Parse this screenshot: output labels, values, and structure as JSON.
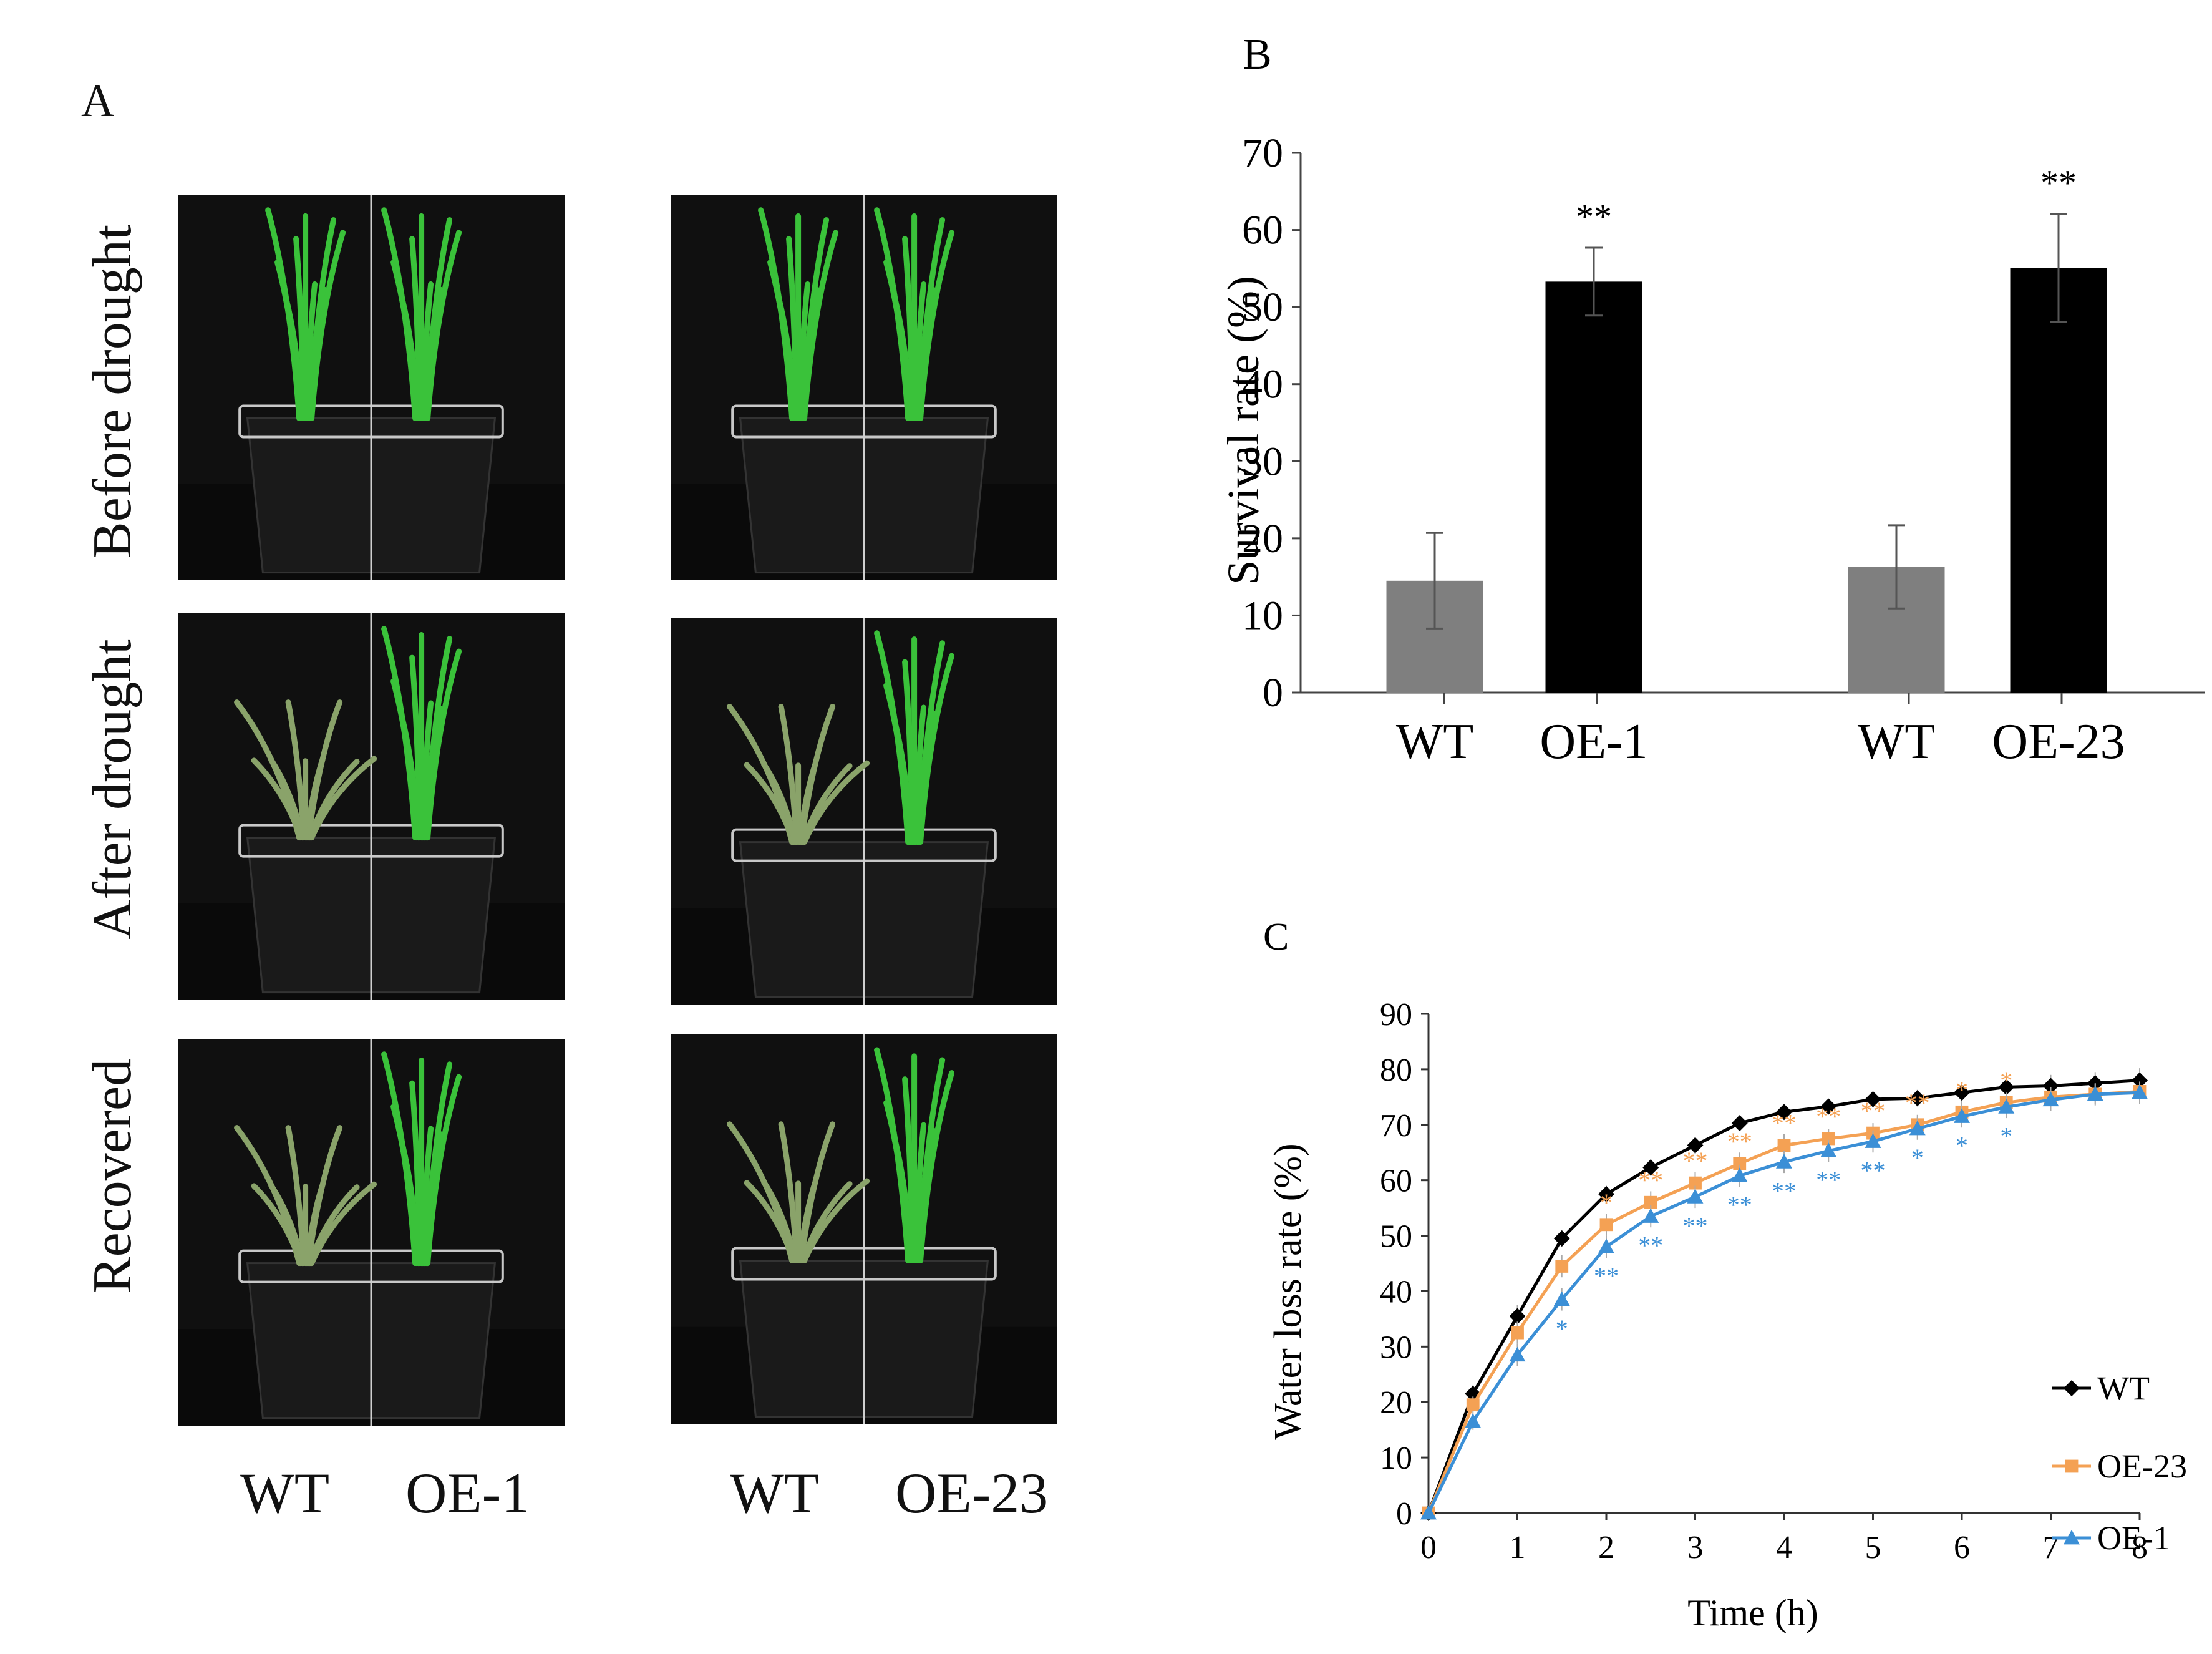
{
  "panel_a": {
    "letter": "A",
    "rows": [
      "Before drought",
      "After drought",
      "Recovered"
    ],
    "columns": [
      {
        "left": "WT",
        "right": "OE-1"
      },
      {
        "left": "WT",
        "right": "OE-23"
      }
    ],
    "colors": {
      "background": "#101010",
      "leaf": "#3ac23a",
      "wilted": "#8aa36a",
      "pot": "#1a1a1a",
      "tray": "#c8c8c8"
    }
  },
  "chart_data": [
    {
      "panel": "B",
      "type": "bar",
      "title": "",
      "xlabel": "",
      "ylabel": "Survival  rate  (%)",
      "ylim": [
        0,
        70
      ],
      "yticks": [
        0,
        10,
        20,
        30,
        40,
        50,
        60,
        70
      ],
      "categories": [
        "WT",
        "OE-1",
        "WT",
        "OE-23"
      ],
      "values": [
        14.5,
        53.3,
        16.3,
        55.1
      ],
      "errors": [
        6.2,
        4.4,
        5.4,
        7.0
      ],
      "significance": [
        "",
        "**",
        "",
        "**"
      ],
      "colors": [
        "#7f7f7f",
        "#000000",
        "#7f7f7f",
        "#000000"
      ]
    },
    {
      "panel": "C",
      "type": "line",
      "title": "",
      "xlabel": "Time (h)",
      "ylabel": "Water  loss  rate  (%)",
      "xlim": [
        0,
        8
      ],
      "ylim": [
        0,
        90
      ],
      "xticks": [
        0,
        1,
        2,
        3,
        4,
        5,
        6,
        7,
        8
      ],
      "yticks": [
        0,
        10,
        20,
        30,
        40,
        50,
        60,
        70,
        80,
        90
      ],
      "x": [
        0,
        0.5,
        1,
        1.5,
        2,
        2.5,
        3,
        3.5,
        4,
        4.5,
        5,
        5.5,
        6,
        6.5,
        7,
        7.5,
        8
      ],
      "series": [
        {
          "name": "WT",
          "color": "#000000",
          "marker": "diamond",
          "values": [
            0,
            21.5,
            35.5,
            49.5,
            57.5,
            62.3,
            66.3,
            70.3,
            72.3,
            73.3,
            74.6,
            74.8,
            75.8,
            76.8,
            77.0,
            77.5,
            78.0
          ],
          "errors": [
            0,
            1.5,
            2.0,
            1.5,
            1.5,
            1.5,
            1.5,
            1.2,
            1.2,
            1.2,
            1.2,
            1.5,
            1.8,
            1.8,
            2.0,
            2.0,
            2.2
          ]
        },
        {
          "name": "OE-23",
          "color": "#f4a154",
          "marker": "square",
          "values": [
            0,
            19.5,
            32.5,
            44.5,
            52.0,
            56.0,
            59.5,
            63.0,
            66.3,
            67.5,
            68.5,
            70.0,
            72.3,
            74.0,
            75.0,
            75.5,
            76.0
          ],
          "errors": [
            0,
            1.5,
            2.0,
            2.0,
            2.0,
            2.0,
            2.0,
            2.0,
            2.0,
            1.8,
            1.8,
            1.8,
            1.8,
            1.8,
            1.8,
            1.8,
            1.8
          ],
          "stars": [
            "",
            "",
            "",
            "",
            "*",
            "**",
            "**",
            "**",
            "**",
            "**",
            "**",
            "**",
            "*",
            "*",
            "",
            "",
            ""
          ]
        },
        {
          "name": "OE-1",
          "color": "#3b8fd6",
          "marker": "triangle",
          "values": [
            0,
            16.5,
            28.5,
            38.5,
            48.0,
            53.5,
            57.0,
            60.8,
            63.3,
            65.3,
            67.0,
            69.3,
            71.5,
            73.2,
            74.5,
            75.5,
            75.8
          ],
          "errors": [
            0,
            1.5,
            2.0,
            2.0,
            2.0,
            2.0,
            2.0,
            2.0,
            2.0,
            2.0,
            2.0,
            2.0,
            2.0,
            2.0,
            2.0,
            2.0,
            2.0
          ],
          "stars": [
            "",
            "",
            "",
            "*",
            "**",
            "**",
            "**",
            "**",
            "**",
            "**",
            "**",
            "*",
            "*",
            "*",
            "",
            "",
            ""
          ]
        }
      ],
      "legend": [
        "WT",
        "OE-23",
        "OE-1"
      ],
      "legend_position": "right-middle"
    }
  ]
}
